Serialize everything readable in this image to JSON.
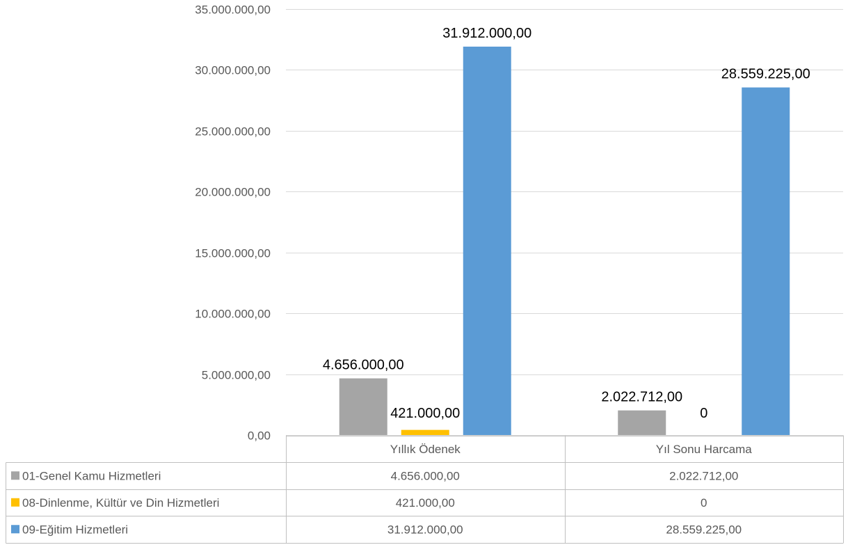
{
  "chart_data": {
    "type": "bar",
    "categories": [
      "Yıllık Ödenek",
      "Yıl Sonu Harcama"
    ],
    "series": [
      {
        "name": "01-Genel Kamu Hizmetleri",
        "color": "#a5a5a5",
        "values": [
          4656000,
          2022712
        ],
        "labels": [
          "4.656.000,00",
          "2.022.712,00"
        ]
      },
      {
        "name": "08-Dinlenme, Kültür ve Din Hizmetleri",
        "color": "#ffc000",
        "values": [
          421000,
          0
        ],
        "labels": [
          "421.000,00",
          "0"
        ]
      },
      {
        "name": "09-Eğitim Hizmetleri",
        "color": "#5b9bd5",
        "values": [
          31912000,
          28559225
        ],
        "labels": [
          "31.912.000,00",
          "28.559.225,00"
        ]
      }
    ],
    "ylim": [
      0,
      35000000
    ],
    "yticks": [
      {
        "value": 0,
        "label": "0,00"
      },
      {
        "value": 5000000,
        "label": "5.000.000,00"
      },
      {
        "value": 10000000,
        "label": "10.000.000,00"
      },
      {
        "value": 15000000,
        "label": "15.000.000,00"
      },
      {
        "value": 20000000,
        "label": "20.000.000,00"
      },
      {
        "value": 25000000,
        "label": "25.000.000,00"
      },
      {
        "value": 30000000,
        "label": "30.000.000,00"
      },
      {
        "value": 35000000,
        "label": "35.000.000,00"
      }
    ],
    "grid": true,
    "legend": "data-table-below",
    "title": "",
    "xlabel": "",
    "ylabel": ""
  }
}
